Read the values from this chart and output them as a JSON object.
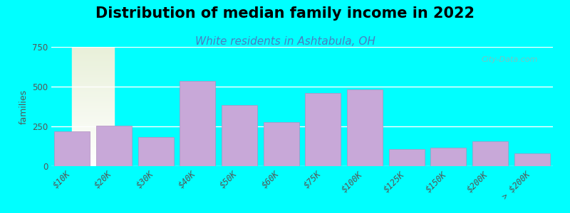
{
  "title": "Distribution of median family income in 2022",
  "subtitle": "White residents in Ashtabula, OH",
  "xlabel": "",
  "ylabel": "families",
  "categories": [
    "$10K",
    "$20K",
    "$30K",
    "$40K",
    "$50K",
    "$60K",
    "$75K",
    "$100K",
    "$125K",
    "$150K",
    "$200K",
    "> $200K"
  ],
  "values": [
    220,
    255,
    185,
    535,
    385,
    275,
    460,
    480,
    105,
    115,
    155,
    80
  ],
  "bar_color": "#c8a8d8",
  "bar_edgecolor": "#b090c0",
  "background_outer": "#00FFFF",
  "background_inner_top": "#e8f0d8",
  "background_inner_bottom": "#ffffff",
  "ylim": [
    0,
    750
  ],
  "yticks": [
    0,
    250,
    500,
    750
  ],
  "title_fontsize": 15,
  "subtitle_fontsize": 11,
  "subtitle_color": "#4a7fc0",
  "watermark": "City-Data.com"
}
